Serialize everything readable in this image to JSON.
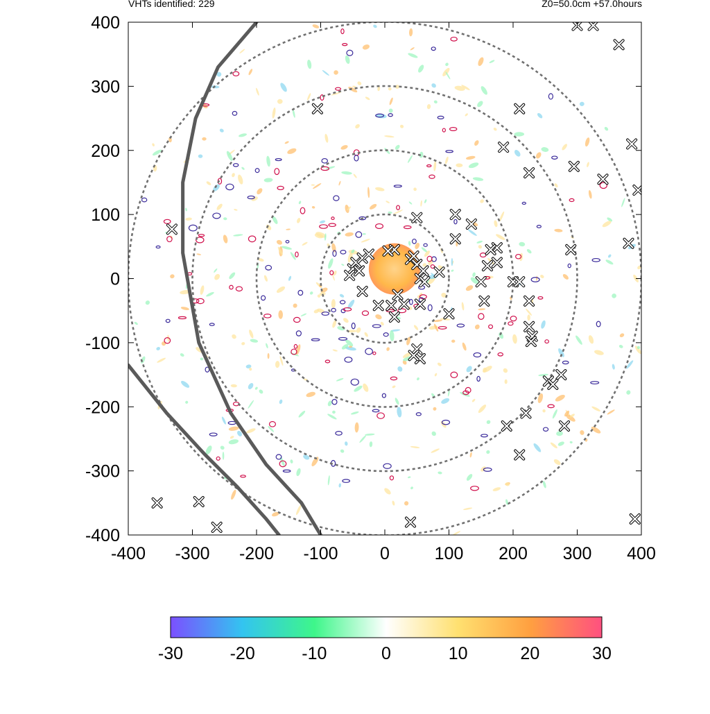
{
  "header": {
    "left": "VHTs identified: 229",
    "right": "Z0=50.0cm  +57.0hours"
  },
  "chart_data": {
    "type": "heatmap",
    "title": "",
    "xlabel": "",
    "ylabel": "",
    "xlim": [
      -400,
      400
    ],
    "ylim": [
      -400,
      400
    ],
    "x_ticks": [
      "-400",
      "-300",
      "-200",
      "-100",
      "0",
      "100",
      "200",
      "300",
      "400"
    ],
    "y_ticks": [
      "-400",
      "-300",
      "-200",
      "-100",
      "0",
      "100",
      "200",
      "300",
      "400"
    ],
    "grid": false,
    "reference_circles_radius": [
      100,
      200,
      300,
      400
    ],
    "colorbar": {
      "range": [
        -30,
        30
      ],
      "tick_labels": [
        "-30",
        "-20",
        "-10",
        "0",
        "10",
        "20",
        "30"
      ],
      "colors": [
        "#7b50ff",
        "#33c4f0",
        "#3ef68a",
        "#ffffff",
        "#ffe070",
        "#ffa040",
        "#ff5080"
      ]
    },
    "core": {
      "center": [
        15,
        15
      ],
      "radius": 40,
      "color": "#ffb84a"
    },
    "track_lines": [
      [
        [
          -400,
          -135
        ],
        [
          -340,
          -210
        ],
        [
          -280,
          -275
        ],
        [
          -230,
          -325
        ],
        [
          -185,
          -375
        ],
        [
          -165,
          -400
        ]
      ],
      [
        [
          -200,
          400
        ],
        [
          -260,
          330
        ],
        [
          -295,
          250
        ],
        [
          -315,
          150
        ],
        [
          -315,
          40
        ],
        [
          -290,
          -100
        ],
        [
          -240,
          -210
        ],
        [
          -185,
          -290
        ],
        [
          -130,
          -350
        ],
        [
          -100,
          -400
        ]
      ]
    ],
    "vht_markers": [
      [
        -105,
        265
      ],
      [
        210,
        265
      ],
      [
        185,
        205
      ],
      [
        225,
        165
      ],
      [
        295,
        175
      ],
      [
        340,
        155
      ],
      [
        385,
        210
      ],
      [
        395,
        138
      ],
      [
        380,
        55
      ],
      [
        365,
        365
      ],
      [
        300,
        395
      ],
      [
        325,
        395
      ],
      [
        -332,
        77
      ],
      [
        50,
        95
      ],
      [
        110,
        100
      ],
      [
        135,
        85
      ],
      [
        110,
        62
      ],
      [
        175,
        48
      ],
      [
        165,
        45
      ],
      [
        290,
        45
      ],
      [
        85,
        10
      ],
      [
        150,
        -5
      ],
      [
        200,
        -5
      ],
      [
        210,
        -5
      ],
      [
        225,
        -35
      ],
      [
        155,
        -35
      ],
      [
        100,
        -55
      ],
      [
        175,
        25
      ],
      [
        160,
        20
      ],
      [
        -35,
        -20
      ],
      [
        20,
        -25
      ],
      [
        55,
        -40
      ],
      [
        15,
        -60
      ],
      [
        -10,
        -42
      ],
      [
        10,
        -42
      ],
      [
        30,
        -40
      ],
      [
        50,
        -110
      ],
      [
        55,
        -125
      ],
      [
        45,
        -120
      ],
      [
        225,
        -75
      ],
      [
        230,
        -90
      ],
      [
        228,
        -98
      ],
      [
        255,
        -160
      ],
      [
        275,
        -150
      ],
      [
        262,
        -165
      ],
      [
        190,
        -230
      ],
      [
        220,
        -210
      ],
      [
        280,
        -230
      ],
      [
        210,
        -275
      ],
      [
        40,
        -380
      ],
      [
        -355,
        -350
      ],
      [
        -290,
        -348
      ],
      [
        -262,
        -388
      ],
      [
        390,
        -375
      ],
      [
        -50,
        15
      ],
      [
        -45,
        25
      ],
      [
        -35,
        32
      ],
      [
        -25,
        38
      ],
      [
        -55,
        5
      ],
      [
        -40,
        12
      ],
      [
        40,
        30
      ],
      [
        50,
        22
      ],
      [
        60,
        12
      ],
      [
        55,
        0
      ],
      [
        62,
        -5
      ],
      [
        45,
        35
      ],
      [
        15,
        45
      ],
      [
        5,
        43
      ]
    ]
  }
}
